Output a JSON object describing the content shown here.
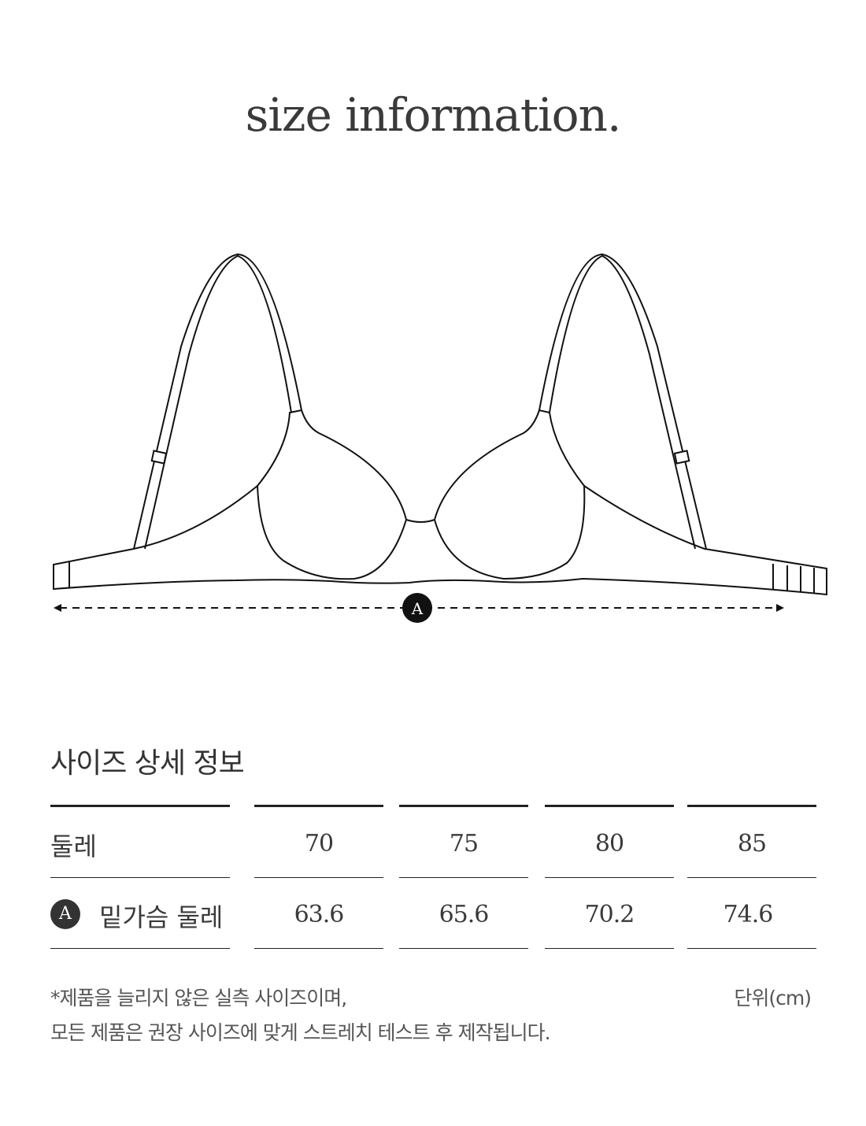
{
  "title": "size information.",
  "diagram": {
    "marker_label": "A"
  },
  "section_title": "사이즈 상세 정보",
  "table": {
    "header": {
      "label": "둘레",
      "values": [
        "70",
        "75",
        "80",
        "85"
      ]
    },
    "rows": [
      {
        "marker": "A",
        "label": "밑가슴 둘레",
        "values": [
          "63.6",
          "65.6",
          "70.2",
          "74.6"
        ]
      }
    ]
  },
  "notes": {
    "line1": "*제품을 늘리지 않은 실측 사이즈이며,",
    "line2": "모든 제품은 권장 사이즈에 맞게 스트레치 테스트 후 제작됩니다.",
    "unit": "단위(cm)"
  }
}
